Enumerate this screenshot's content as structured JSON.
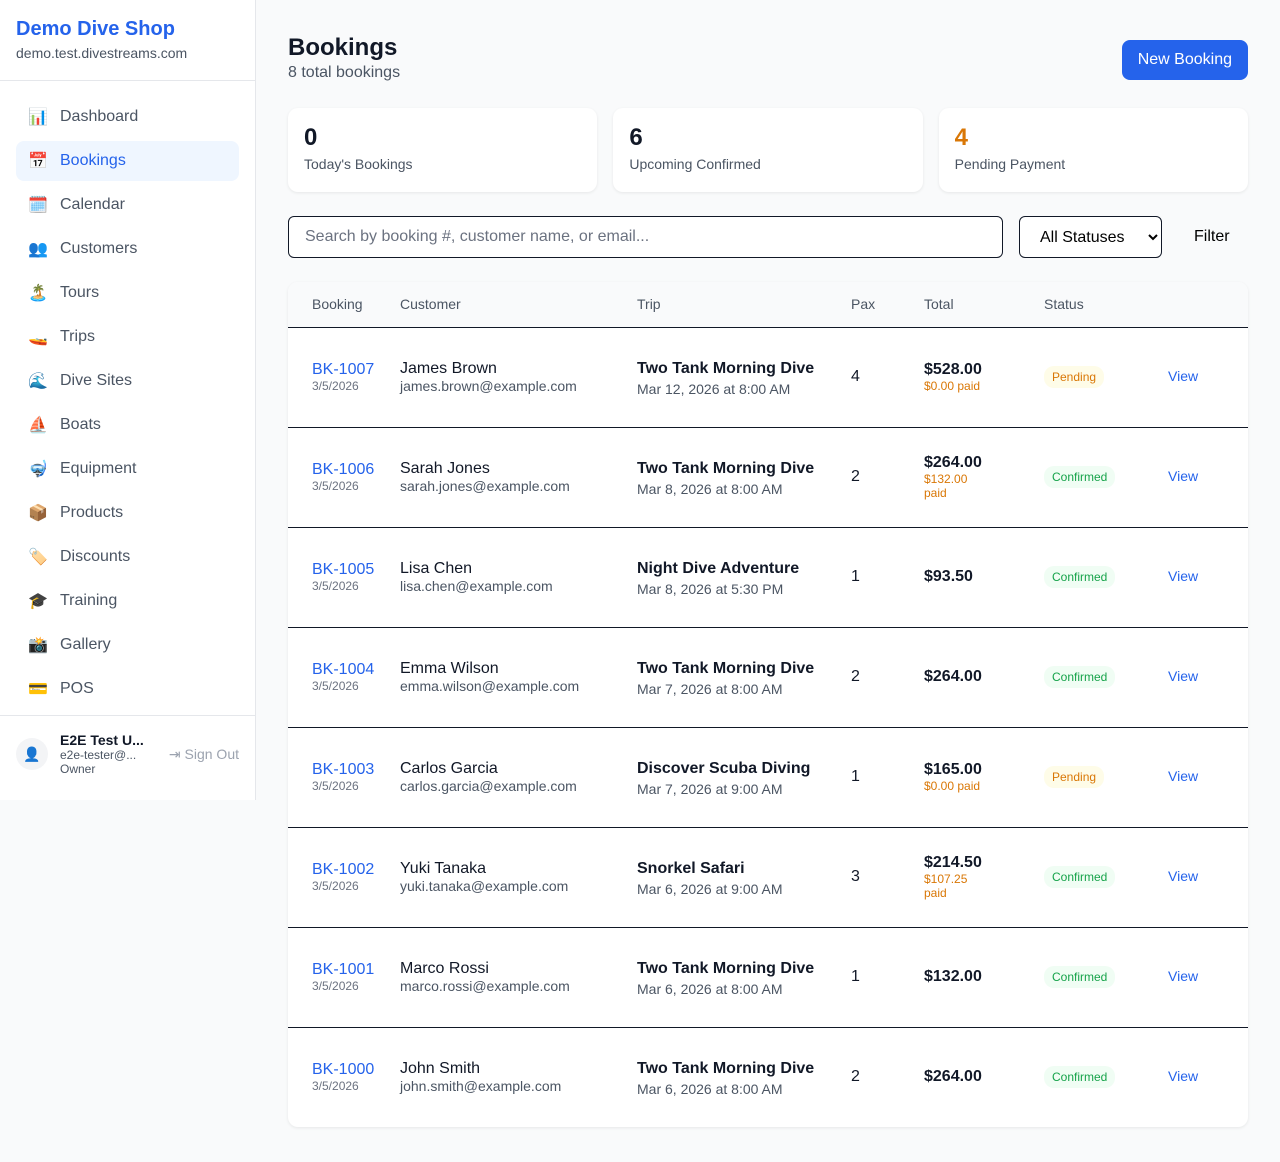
{
  "sidebar": {
    "shop_name": "Demo Dive Shop",
    "domain": "demo.test.divestreams.com",
    "items": [
      {
        "label": "Dashboard",
        "icon": "📊"
      },
      {
        "label": "Bookings",
        "icon": "📅"
      },
      {
        "label": "Calendar",
        "icon": "🗓️"
      },
      {
        "label": "Customers",
        "icon": "👥"
      },
      {
        "label": "Tours",
        "icon": "🏝️"
      },
      {
        "label": "Trips",
        "icon": "🚤"
      },
      {
        "label": "Dive Sites",
        "icon": "🌊"
      },
      {
        "label": "Boats",
        "icon": "⛵"
      },
      {
        "label": "Equipment",
        "icon": "🤿"
      },
      {
        "label": "Products",
        "icon": "📦"
      },
      {
        "label": "Discounts",
        "icon": "🏷️"
      },
      {
        "label": "Training",
        "icon": "🎓"
      },
      {
        "label": "Gallery",
        "icon": "📸"
      },
      {
        "label": "POS",
        "icon": "💳"
      }
    ],
    "active": "Bookings",
    "user": {
      "name": "E2E Test U...",
      "email": "e2e-tester@...",
      "role": "Owner",
      "sign_out": "Sign Out"
    }
  },
  "header": {
    "title": "Bookings",
    "subtitle": "8 total bookings",
    "new_button": "New Booking"
  },
  "stats": [
    {
      "value": "0",
      "label": "Today's Bookings",
      "color": "#111827"
    },
    {
      "value": "6",
      "label": "Upcoming Confirmed",
      "color": "#111827"
    },
    {
      "value": "4",
      "label": "Pending Payment",
      "color": "#d97706"
    }
  ],
  "filters": {
    "search_placeholder": "Search by booking #, customer name, or email...",
    "status_selected": "All Statuses",
    "filter_button": "Filter"
  },
  "table": {
    "headers": [
      "Booking",
      "Customer",
      "Trip",
      "Pax",
      "Total",
      "Status",
      ""
    ],
    "rows": [
      {
        "id": "BK-1007",
        "date": "3/5/2026",
        "name": "James Brown",
        "email": "james.brown@example.com",
        "trip": "Two Tank Morning Dive",
        "trip_date": "Mar 12, 2026 at 8:00 AM",
        "pax": "4",
        "total": "$528.00",
        "paid": "$0.00 paid",
        "status": "Pending",
        "action": "View"
      },
      {
        "id": "BK-1006",
        "date": "3/5/2026",
        "name": "Sarah Jones",
        "email": "sarah.jones@example.com",
        "trip": "Two Tank Morning Dive",
        "trip_date": "Mar 8, 2026 at 8:00 AM",
        "pax": "2",
        "total": "$264.00",
        "paid": "$132.00 paid",
        "status": "Confirmed",
        "action": "View"
      },
      {
        "id": "BK-1005",
        "date": "3/5/2026",
        "name": "Lisa Chen",
        "email": "lisa.chen@example.com",
        "trip": "Night Dive Adventure",
        "trip_date": "Mar 8, 2026 at 5:30 PM",
        "pax": "1",
        "total": "$93.50",
        "paid": "",
        "status": "Confirmed",
        "action": "View"
      },
      {
        "id": "BK-1004",
        "date": "3/5/2026",
        "name": "Emma Wilson",
        "email": "emma.wilson@example.com",
        "trip": "Two Tank Morning Dive",
        "trip_date": "Mar 7, 2026 at 8:00 AM",
        "pax": "2",
        "total": "$264.00",
        "paid": "",
        "status": "Confirmed",
        "action": "View"
      },
      {
        "id": "BK-1003",
        "date": "3/5/2026",
        "name": "Carlos Garcia",
        "email": "carlos.garcia@example.com",
        "trip": "Discover Scuba Diving",
        "trip_date": "Mar 7, 2026 at 9:00 AM",
        "pax": "1",
        "total": "$165.00",
        "paid": "$0.00 paid",
        "status": "Pending",
        "action": "View"
      },
      {
        "id": "BK-1002",
        "date": "3/5/2026",
        "name": "Yuki Tanaka",
        "email": "yuki.tanaka@example.com",
        "trip": "Snorkel Safari",
        "trip_date": "Mar 6, 2026 at 9:00 AM",
        "pax": "3",
        "total": "$214.50",
        "paid": "$107.25 paid",
        "status": "Confirmed",
        "action": "View"
      },
      {
        "id": "BK-1001",
        "date": "3/5/2026",
        "name": "Marco Rossi",
        "email": "marco.rossi@example.com",
        "trip": "Two Tank Morning Dive",
        "trip_date": "Mar 6, 2026 at 8:00 AM",
        "pax": "1",
        "total": "$132.00",
        "paid": "",
        "status": "Confirmed",
        "action": "View"
      },
      {
        "id": "BK-1000",
        "date": "3/5/2026",
        "name": "John Smith",
        "email": "john.smith@example.com",
        "trip": "Two Tank Morning Dive",
        "trip_date": "Mar 6, 2026 at 8:00 AM",
        "pax": "2",
        "total": "$264.00",
        "paid": "",
        "status": "Confirmed",
        "action": "View"
      }
    ]
  }
}
